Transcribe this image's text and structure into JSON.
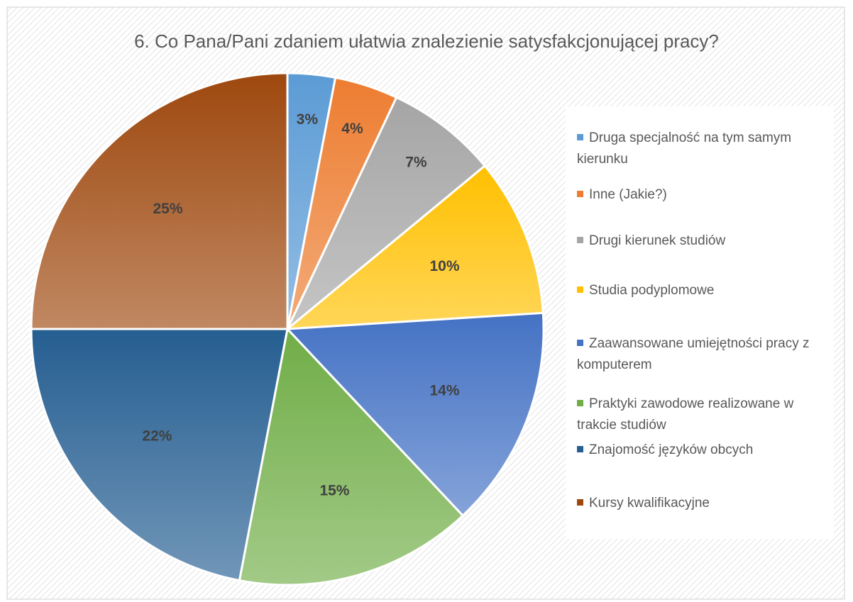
{
  "chart_data": {
    "type": "pie",
    "title": "6. Co Pana/Pani zdaniem ułatwia znalezienie satysfakcjonującej pracy?",
    "categories": [
      "Druga specjalność na tym samym kierunku",
      "Inne (Jakie?)",
      "Drugi kierunek studiów",
      "Studia podyplomowe",
      "Zaawansowane umiejętności pracy z komputerem",
      "Praktyki zawodowe realizowane w trakcie studiów",
      "Znajomość języków obcych",
      "Kursy kwalifikacyjne"
    ],
    "values": [
      3,
      4,
      7,
      10,
      14,
      15,
      22,
      25
    ],
    "value_labels": [
      "3%",
      "4%",
      "7%",
      "10%",
      "14%",
      "15%",
      "22%",
      "25%"
    ],
    "colors": [
      "#5b9bd5",
      "#ed7d31",
      "#a5a5a5",
      "#ffc000",
      "#4472c4",
      "#70ad47",
      "#255e91",
      "#9e480e"
    ],
    "legend": "right"
  }
}
